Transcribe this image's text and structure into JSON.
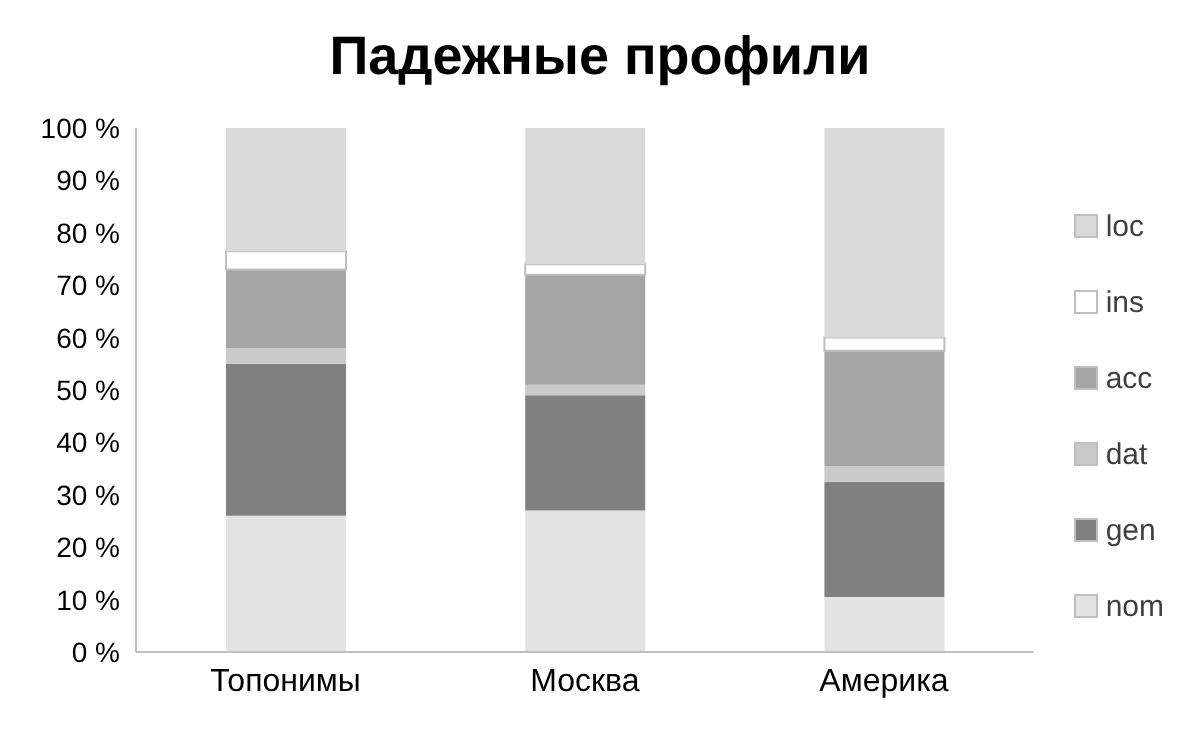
{
  "chart_data": {
    "type": "bar",
    "title": "Падежные профили",
    "stacked": true,
    "categories": [
      "Топонимы",
      "Москва",
      "Америка"
    ],
    "series": [
      {
        "name": "nom",
        "color": "#e3e3e3",
        "values": [
          26,
          27,
          10.5
        ]
      },
      {
        "name": "gen",
        "color": "#808080",
        "values": [
          29,
          22,
          22
        ]
      },
      {
        "name": "dat",
        "color": "#cacaca",
        "values": [
          3,
          2,
          3
        ]
      },
      {
        "name": "acc",
        "color": "#a5a5a5",
        "values": [
          15,
          21,
          22
        ]
      },
      {
        "name": "ins",
        "color": "#ffffff",
        "values": [
          3.5,
          2,
          2.5
        ]
      },
      {
        "name": "loc",
        "color": "#d9d9d9",
        "values": [
          23.5,
          26,
          40
        ]
      }
    ],
    "ylim": [
      0,
      100
    ],
    "yticks": [
      {
        "value": 0,
        "label": "0 %"
      },
      {
        "value": 10,
        "label": "10 %"
      },
      {
        "value": 20,
        "label": "20 %"
      },
      {
        "value": 30,
        "label": "30 %"
      },
      {
        "value": 40,
        "label": "40 %"
      },
      {
        "value": 50,
        "label": "50 %"
      },
      {
        "value": 60,
        "label": "60 %"
      },
      {
        "value": 70,
        "label": "70 %"
      },
      {
        "value": 80,
        "label": "80 %"
      },
      {
        "value": 90,
        "label": "90 %"
      },
      {
        "value": 100,
        "label": "100 %"
      }
    ],
    "grid": false,
    "legend": "right"
  }
}
